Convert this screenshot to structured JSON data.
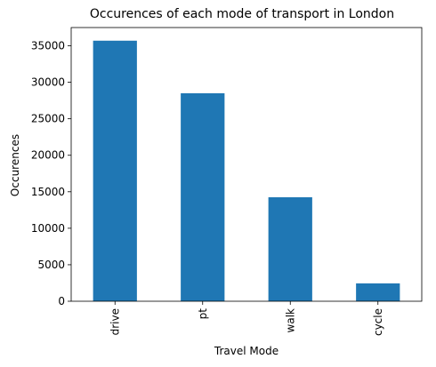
{
  "chart_data": {
    "type": "bar",
    "title": "Occurences of each mode of transport in London",
    "xlabel": "Travel Mode",
    "ylabel": "Occurences",
    "categories": [
      "drive",
      "pt",
      "walk",
      "cycle"
    ],
    "values": [
      35700,
      28500,
      14250,
      2450
    ],
    "ylim": [
      0,
      37500
    ],
    "yticks": [
      0,
      5000,
      10000,
      15000,
      20000,
      25000,
      30000,
      35000
    ],
    "grid": false,
    "legend": "none",
    "bar_color": "#1f77b4"
  }
}
